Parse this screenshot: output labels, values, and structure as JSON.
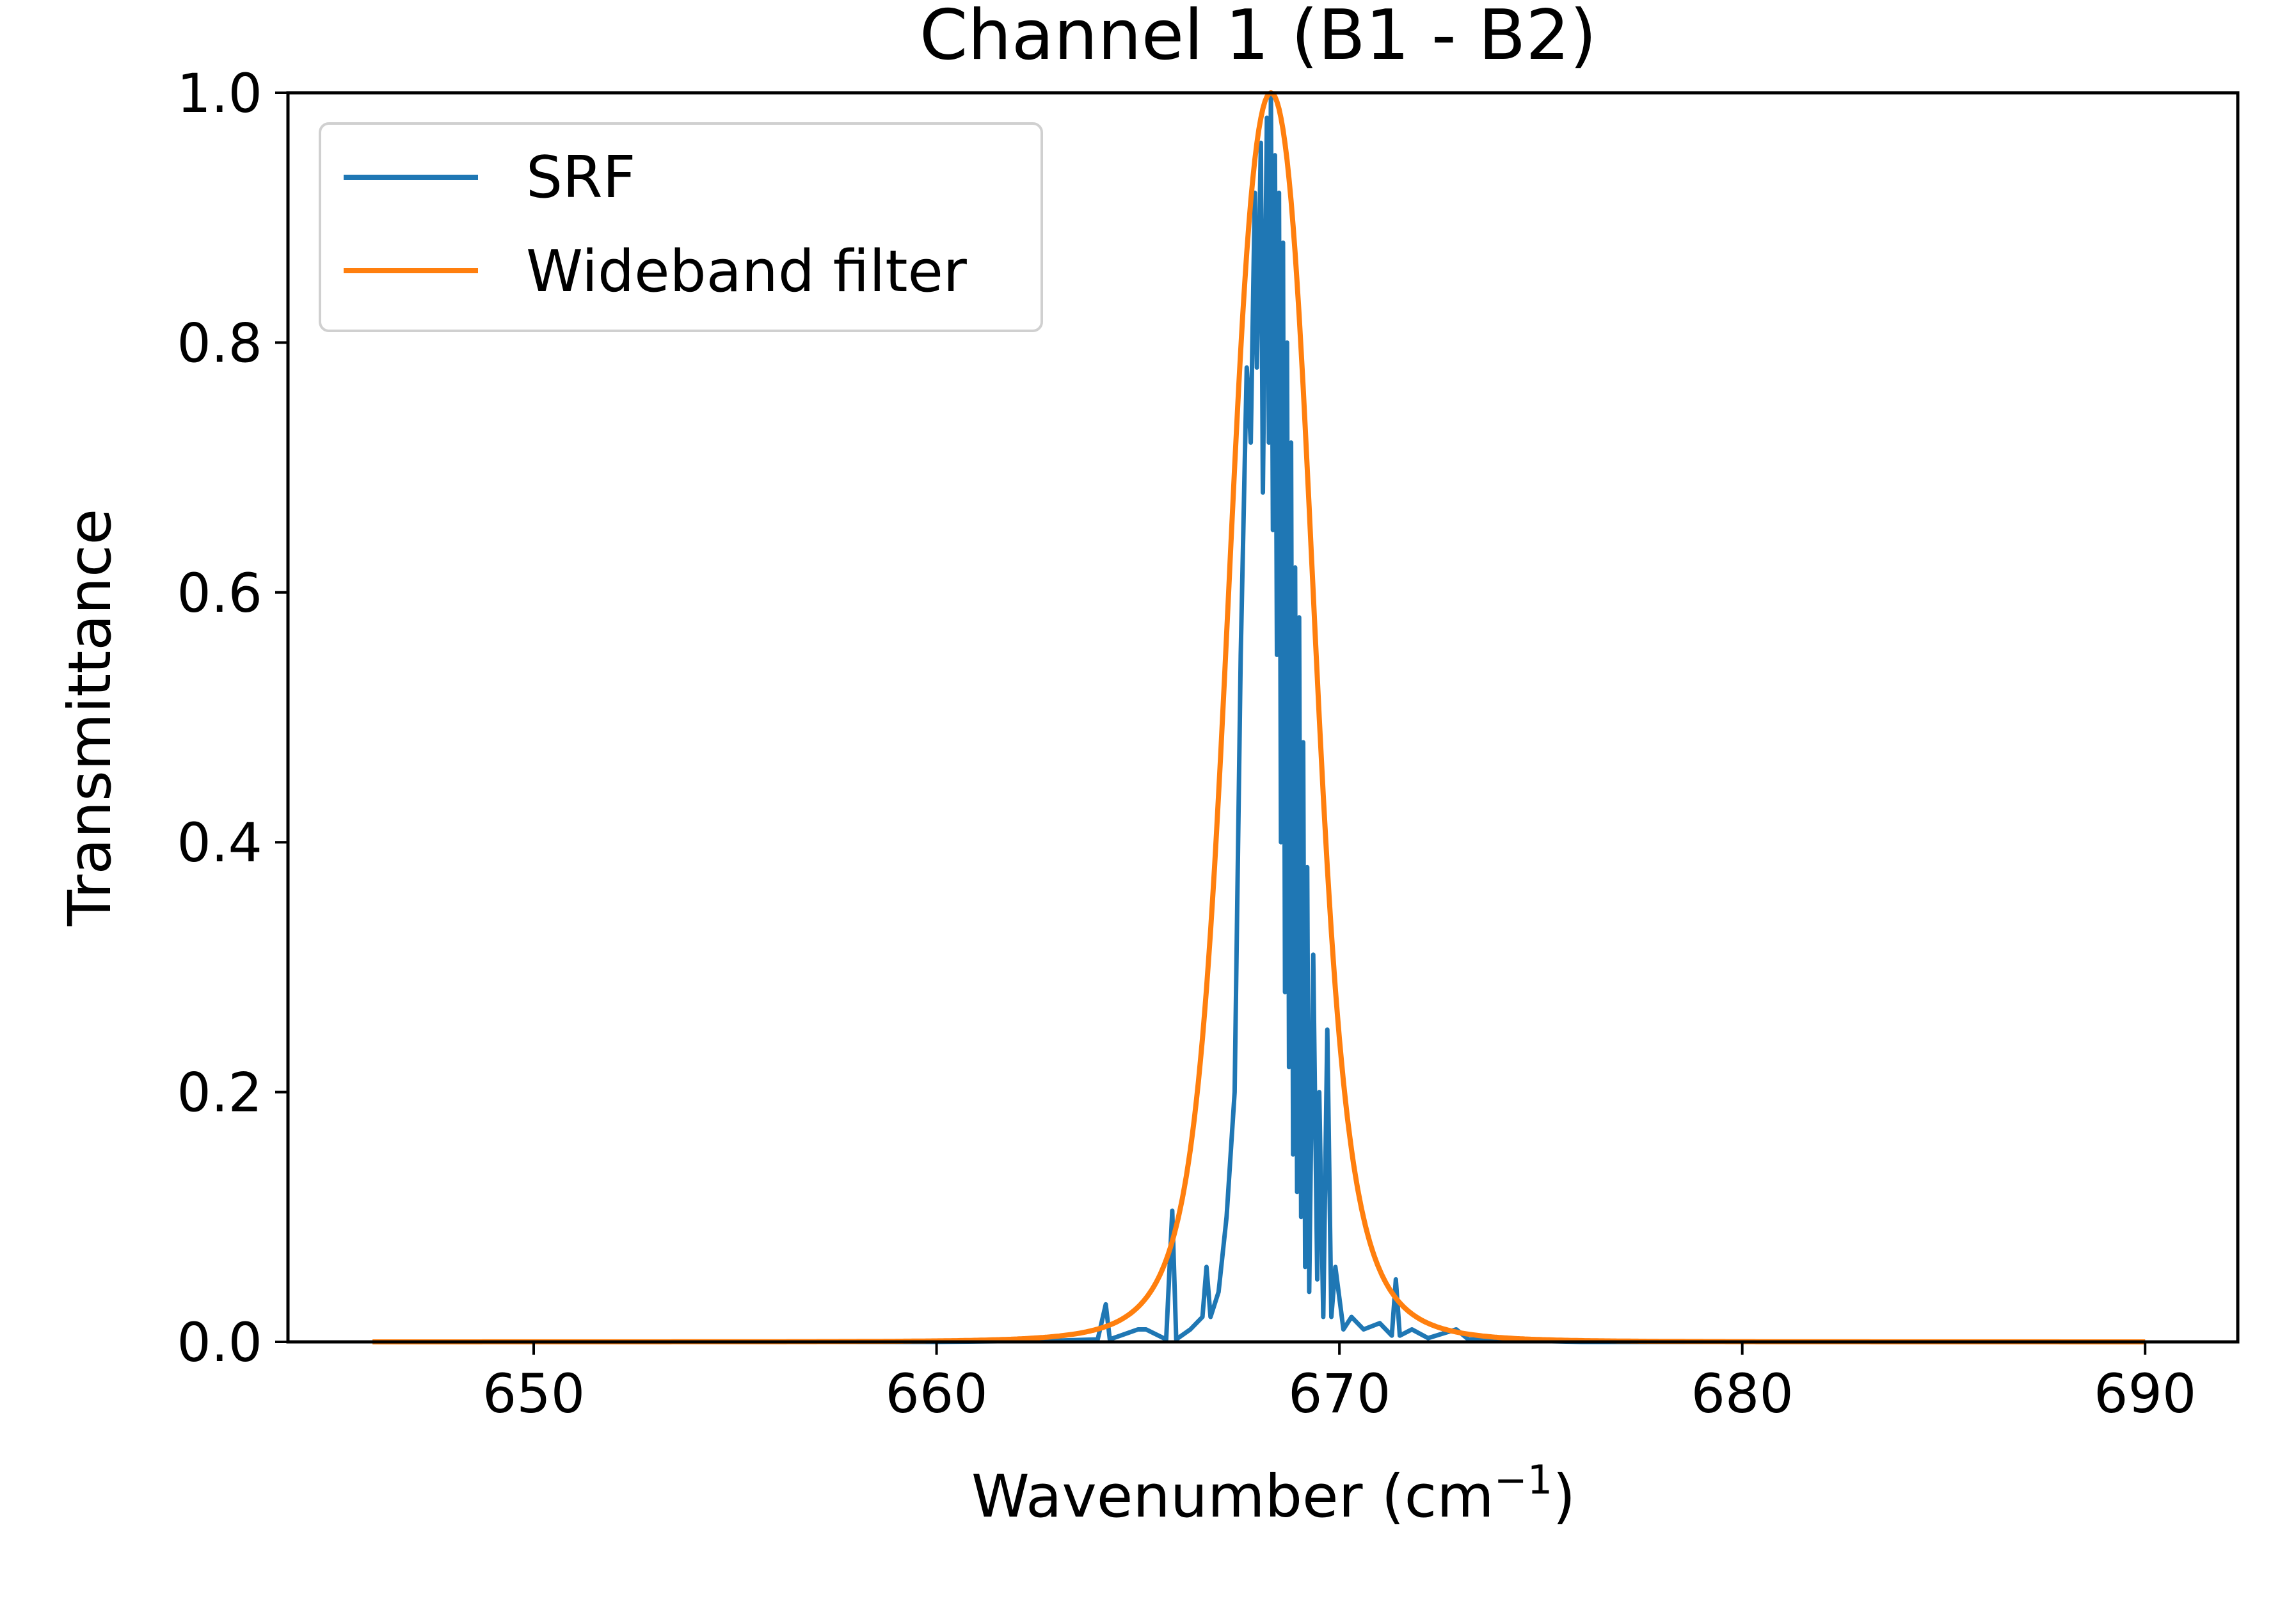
{
  "chart_data": {
    "type": "line",
    "title": "Channel 1 (B1 - B2)",
    "xlabel": "Wavenumber (cm",
    "xlabel_sup": "−1",
    "xlabel_end": ")",
    "ylabel": "Transmittance",
    "xlim": [
      643.9,
      692.3
    ],
    "ylim": [
      0.0,
      1.0
    ],
    "xticks": [
      650,
      660,
      670,
      680,
      690
    ],
    "xtick_labels": [
      "650",
      "660",
      "670",
      "680",
      "690"
    ],
    "yticks": [
      0.0,
      0.2,
      0.4,
      0.6,
      0.8,
      1.0
    ],
    "ytick_labels": [
      "0.0",
      "0.2",
      "0.4",
      "0.6",
      "0.8",
      "1.0"
    ],
    "grid": false,
    "legend_position": "upper-left",
    "series": [
      {
        "name": "SRF",
        "color": "#1f77b4",
        "points": [
          [
            646.0,
            0.0
          ],
          [
            660.0,
            0.0
          ],
          [
            663.0,
            0.001
          ],
          [
            664.0,
            0.002
          ],
          [
            664.2,
            0.03
          ],
          [
            664.3,
            0.002
          ],
          [
            665.0,
            0.01
          ],
          [
            665.2,
            0.01
          ],
          [
            665.7,
            0.002
          ],
          [
            665.85,
            0.105
          ],
          [
            665.95,
            0.002
          ],
          [
            666.3,
            0.01
          ],
          [
            666.6,
            0.02
          ],
          [
            666.7,
            0.06
          ],
          [
            666.8,
            0.02
          ],
          [
            667.0,
            0.04
          ],
          [
            667.2,
            0.1
          ],
          [
            667.4,
            0.2
          ],
          [
            667.55,
            0.55
          ],
          [
            667.7,
            0.78
          ],
          [
            667.8,
            0.72
          ],
          [
            667.9,
            0.92
          ],
          [
            667.95,
            0.78
          ],
          [
            668.05,
            0.96
          ],
          [
            668.1,
            0.68
          ],
          [
            668.2,
            0.98
          ],
          [
            668.25,
            0.72
          ],
          [
            668.3,
            1.0
          ],
          [
            668.35,
            0.65
          ],
          [
            668.4,
            0.95
          ],
          [
            668.45,
            0.55
          ],
          [
            668.5,
            0.92
          ],
          [
            668.55,
            0.4
          ],
          [
            668.6,
            0.88
          ],
          [
            668.65,
            0.28
          ],
          [
            668.7,
            0.8
          ],
          [
            668.75,
            0.22
          ],
          [
            668.8,
            0.72
          ],
          [
            668.85,
            0.15
          ],
          [
            668.9,
            0.62
          ],
          [
            668.95,
            0.12
          ],
          [
            669.0,
            0.58
          ],
          [
            669.05,
            0.1
          ],
          [
            669.1,
            0.48
          ],
          [
            669.15,
            0.06
          ],
          [
            669.2,
            0.38
          ],
          [
            669.25,
            0.04
          ],
          [
            669.35,
            0.31
          ],
          [
            669.45,
            0.05
          ],
          [
            669.5,
            0.2
          ],
          [
            669.6,
            0.02
          ],
          [
            669.7,
            0.25
          ],
          [
            669.8,
            0.02
          ],
          [
            669.9,
            0.06
          ],
          [
            670.1,
            0.01
          ],
          [
            670.3,
            0.02
          ],
          [
            670.6,
            0.01
          ],
          [
            671.0,
            0.015
          ],
          [
            671.3,
            0.005
          ],
          [
            671.4,
            0.05
          ],
          [
            671.5,
            0.005
          ],
          [
            671.8,
            0.01
          ],
          [
            672.2,
            0.003
          ],
          [
            672.9,
            0.01
          ],
          [
            673.2,
            0.002
          ],
          [
            676.0,
            0.0
          ],
          [
            690.0,
            0.0
          ]
        ]
      },
      {
        "name": "Wideband filter",
        "color": "#ff7f0e",
        "center": 668.3,
        "width": 1.2,
        "x_range": [
          646.0,
          690.0
        ]
      }
    ]
  }
}
